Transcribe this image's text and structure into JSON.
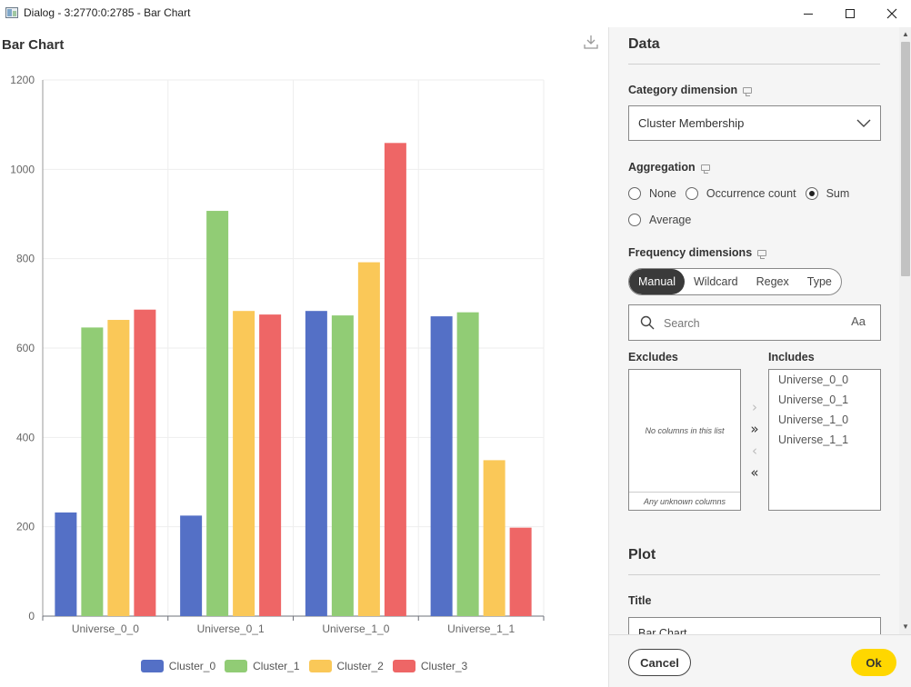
{
  "window": {
    "title": "Dialog - 3:2770:0:2785 - Bar Chart"
  },
  "chart_panel": {
    "title": "Bar Chart"
  },
  "chart_data": {
    "type": "bar",
    "title": "Bar Chart",
    "xlabel": "",
    "ylabel": "",
    "categories": [
      "Universe_0_0",
      "Universe_0_1",
      "Universe_1_0",
      "Universe_1_1"
    ],
    "ylim": [
      0,
      1200
    ],
    "yticks": [
      0,
      200,
      400,
      600,
      800,
      1000,
      1200
    ],
    "grid": true,
    "legend_position": "bottom",
    "series": [
      {
        "name": "Cluster_0",
        "color": "#5470c6",
        "values": [
          232,
          225,
          683,
          671
        ]
      },
      {
        "name": "Cluster_1",
        "color": "#91cc75",
        "values": [
          646,
          907,
          673,
          680
        ]
      },
      {
        "name": "Cluster_2",
        "color": "#fac858",
        "values": [
          663,
          683,
          792,
          349
        ]
      },
      {
        "name": "Cluster_3",
        "color": "#ee6666",
        "values": [
          686,
          675,
          1059,
          198
        ]
      }
    ]
  },
  "settings": {
    "data_section": "Data",
    "category_dimension": {
      "label": "Category dimension",
      "value": "Cluster Membership"
    },
    "aggregation": {
      "label": "Aggregation",
      "options": [
        "None",
        "Occurrence count",
        "Sum",
        "Average"
      ],
      "selected": "Sum"
    },
    "frequency_dimensions": {
      "label": "Frequency dimensions",
      "modes": [
        "Manual",
        "Wildcard",
        "Regex",
        "Type"
      ],
      "active_mode": "Manual",
      "search_placeholder": "Search",
      "case_toggle": "Aa",
      "excludes_label": "Excludes",
      "includes_label": "Includes",
      "excludes_empty": "No columns in this list",
      "unknown_columns": "Any unknown columns",
      "includes": [
        "Universe_0_0",
        "Universe_0_1",
        "Universe_1_0",
        "Universe_1_1"
      ]
    },
    "plot_section": "Plot",
    "title_field": {
      "label": "Title",
      "value": "Bar Chart"
    }
  },
  "footer": {
    "cancel_label": "Cancel",
    "ok_label": "Ok",
    "ok_color": "#ffd700"
  }
}
